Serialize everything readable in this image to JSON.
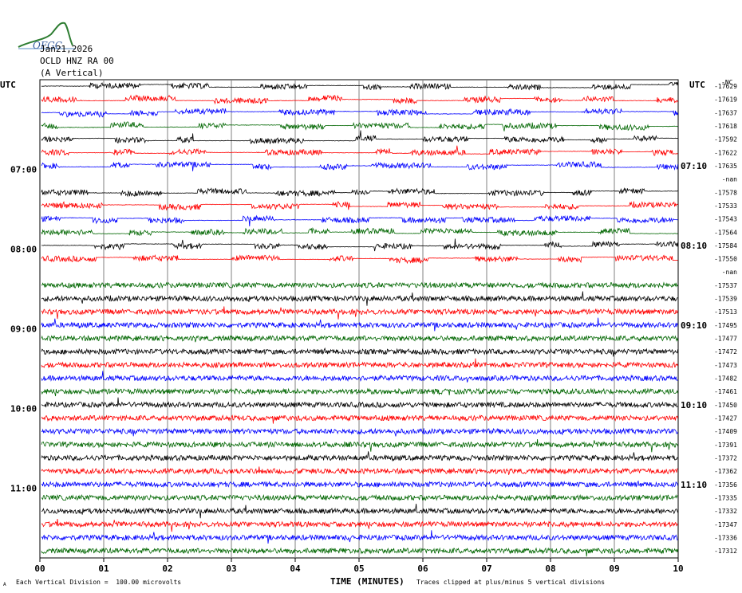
{
  "logo": {
    "text": "OFGC"
  },
  "header": {
    "date": "Jan21,2026",
    "station": "OCLD HNZ RA 00",
    "component": "(A Vertical)"
  },
  "utc_left": "UTC",
  "utc_right": "UTC",
  "right_header": "-NC",
  "footer": {
    "icon_text": "A",
    "scale_note": "Each Vertical Division =  100.00 microvolts",
    "xlabel": "TIME (MINUTES)",
    "clip_note": "Traces clipped at plus/minus 5 vertical divisions"
  },
  "colors": {
    "black": "#000000",
    "red": "#ff0000",
    "blue": "#0000ff",
    "green": "#006600",
    "grid": "#808080"
  },
  "chart_data": {
    "type": "line",
    "title": "",
    "xlabel": "TIME (MINUTES)",
    "xlim": [
      0,
      10
    ],
    "x_ticks": [
      "00",
      "01",
      "02",
      "03",
      "04",
      "05",
      "06",
      "07",
      "08",
      "09",
      "10"
    ],
    "left_time_labels": [
      {
        "label": "07:00",
        "trace": 7
      },
      {
        "label": "08:00",
        "trace": 13
      },
      {
        "label": "09:00",
        "trace": 19
      },
      {
        "label": "10:00",
        "trace": 25
      },
      {
        "label": "11:00",
        "trace": 31
      }
    ],
    "right_time_labels": [
      {
        "label": "07:10",
        "trace": 6
      },
      {
        "label": "08:10",
        "trace": 12
      },
      {
        "label": "09:10",
        "trace": 18
      },
      {
        "label": "10:10",
        "trace": 24
      },
      {
        "label": "11:10",
        "trace": 30
      }
    ],
    "trace_offsets": [
      "-17629",
      "-17619",
      "-17637",
      "-17618",
      "-17592",
      "-17622",
      "-17635",
      "-nan",
      "-17578",
      "-17533",
      "-17543",
      "-17564",
      "-17584",
      "-17550",
      "-nan",
      "-17537",
      "-17539",
      "-17513",
      "-17495",
      "-17477",
      "-17472",
      "-17473",
      "-17482",
      "-17461",
      "-17450",
      "-17427",
      "-17409",
      "-17391",
      "-17372",
      "-17362",
      "-17356",
      "-17335",
      "-17332",
      "-17347",
      "-17336",
      "-17312"
    ],
    "trace_colors": [
      "black",
      "red",
      "blue",
      "green",
      "black",
      "red",
      "blue",
      "black",
      "black",
      "red",
      "blue",
      "green",
      "black",
      "red",
      "green",
      "green",
      "black",
      "red",
      "blue",
      "green",
      "black",
      "red",
      "blue",
      "green",
      "black",
      "red",
      "blue",
      "green",
      "black",
      "red",
      "blue",
      "green",
      "black",
      "red",
      "blue",
      "green"
    ]
  }
}
